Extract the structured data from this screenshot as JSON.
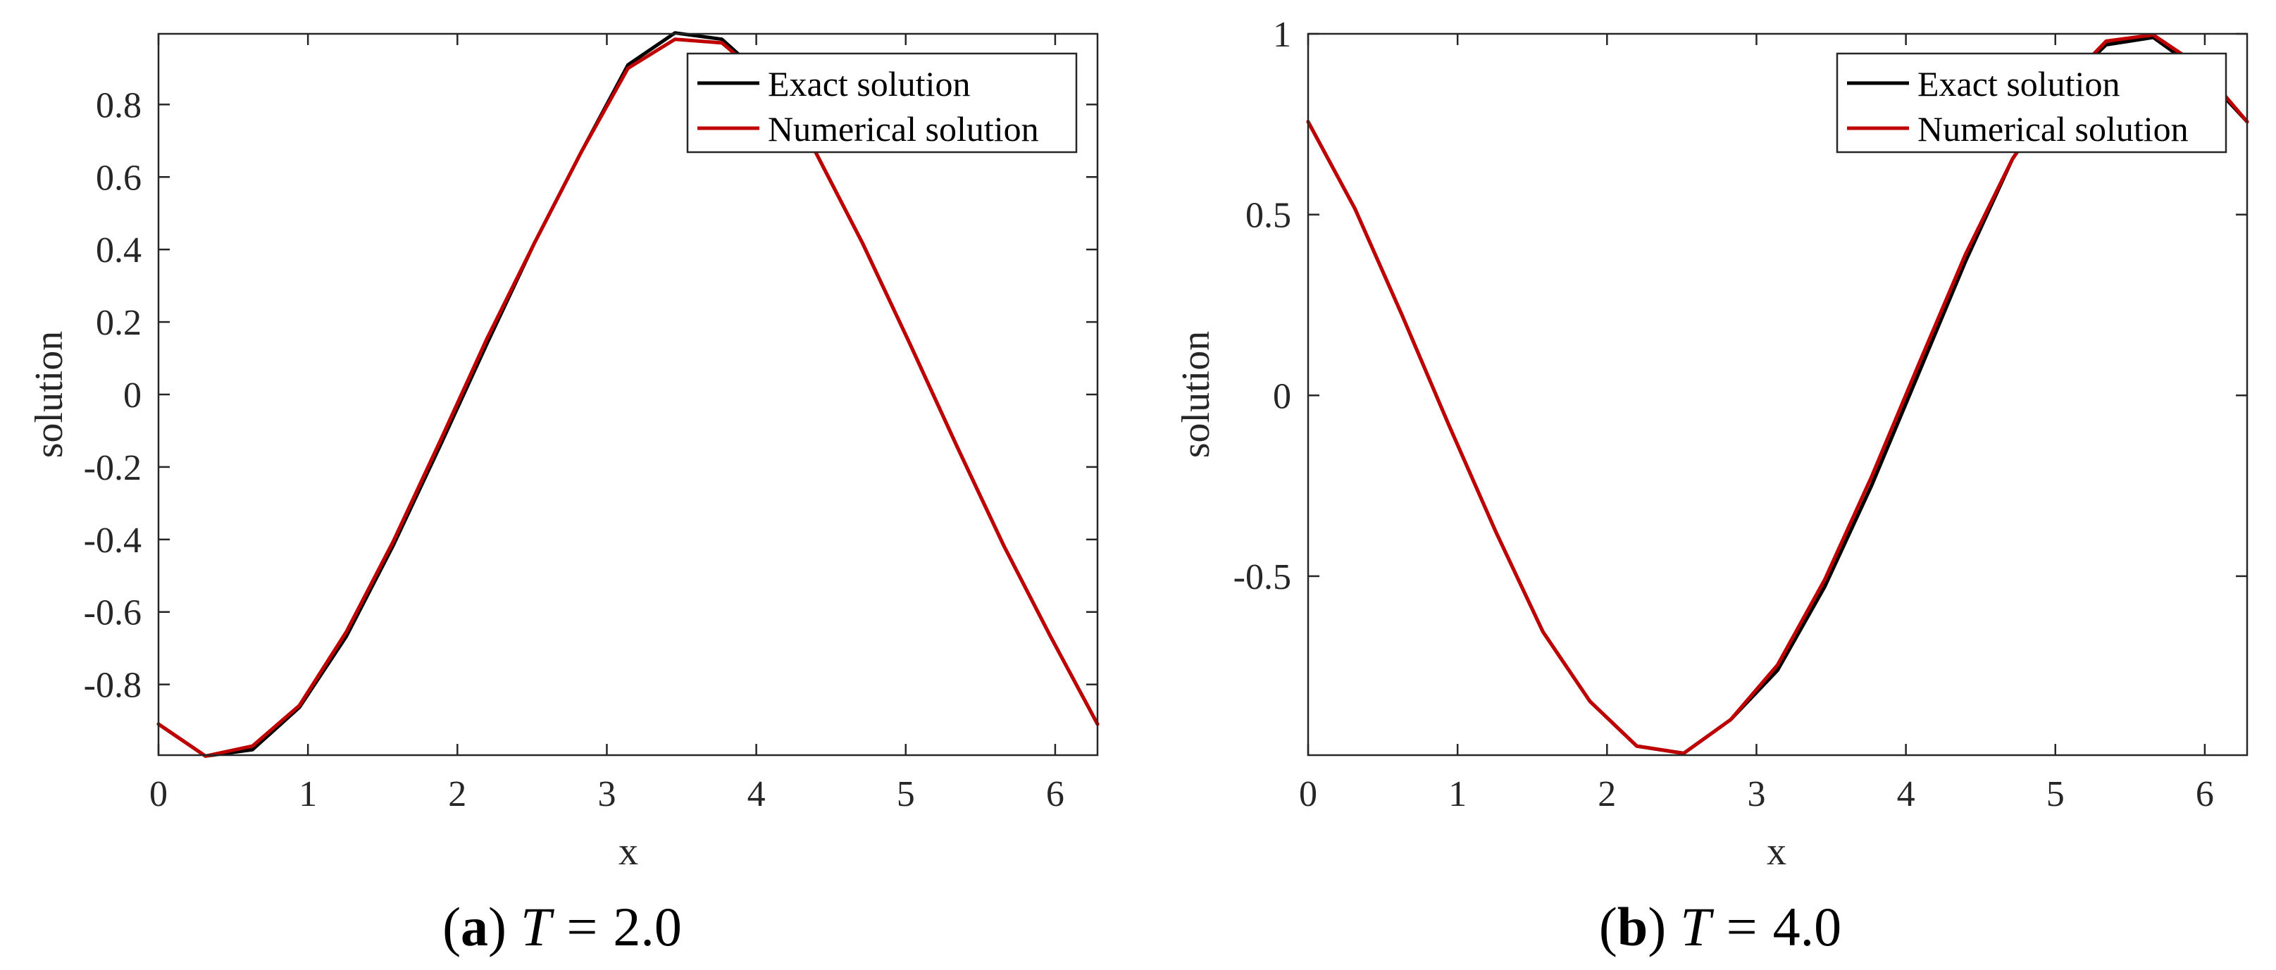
{
  "chart_data": [
    {
      "type": "line",
      "caption": {
        "letter": "a",
        "open": "(",
        "close": ")",
        "variable": "T",
        "equals": "=",
        "value": "2.0"
      },
      "xlabel": "x",
      "ylabel": "solution",
      "xlim": [
        0,
        6.2832
      ],
      "ylim": [
        -0.995,
        0.995
      ],
      "xticks": [
        0,
        1,
        2,
        3,
        4,
        5,
        6
      ],
      "xtick_labels": [
        "0",
        "1",
        "2",
        "3",
        "4",
        "5",
        "6"
      ],
      "yticks": [
        -0.8,
        -0.6,
        -0.4,
        -0.2,
        0,
        0.2,
        0.4,
        0.6,
        0.8
      ],
      "ytick_labels": [
        "-0.8",
        "-0.6",
        "-0.4",
        "-0.2",
        "0",
        "0.2",
        "0.4",
        "0.6",
        "0.8"
      ],
      "legend_position": "top-right",
      "series": [
        {
          "name": "Exact solution",
          "color": "#000000",
          "x": [
            0,
            0.3142,
            0.6283,
            0.9425,
            1.2566,
            1.5708,
            1.885,
            2.1991,
            2.5133,
            2.8274,
            3.1416,
            3.4558,
            3.7699,
            4.0841,
            4.3982,
            4.7124,
            5.0265,
            5.3407,
            5.6549,
            5.969,
            6.2832
          ],
          "y": [
            -0.9093,
            -0.9975,
            -0.98,
            -0.8632,
            -0.6676,
            -0.4161,
            -0.1411,
            0.1411,
            0.4161,
            0.6676,
            0.9093,
            0.9975,
            0.98,
            0.8632,
            0.6676,
            0.4161,
            0.1411,
            -0.1411,
            -0.4161,
            -0.6676,
            -0.9093
          ]
        },
        {
          "name": "Numerical solution",
          "color": "#c00000",
          "x": [
            0,
            0.3142,
            0.6283,
            0.9425,
            1.2566,
            1.5708,
            1.885,
            2.1991,
            2.5133,
            2.8274,
            3.1416,
            3.4558,
            3.7699,
            4.0841,
            4.3982,
            4.7124,
            5.0265,
            5.3407,
            5.6549,
            5.969,
            6.2832
          ],
          "y": [
            -0.9093,
            -0.9975,
            -0.97,
            -0.858,
            -0.655,
            -0.405,
            -0.128,
            0.155,
            0.4161,
            0.6676,
            0.9,
            0.98,
            0.97,
            0.86,
            0.6676,
            0.4161,
            0.1411,
            -0.1411,
            -0.4161,
            -0.6676,
            -0.9093
          ]
        }
      ]
    },
    {
      "type": "line",
      "caption": {
        "letter": "b",
        "open": "(",
        "close": ")",
        "variable": "T",
        "equals": "=",
        "value": "4.0"
      },
      "xlabel": "x",
      "ylabel": "solution",
      "xlim": [
        0,
        6.2832
      ],
      "ylim": [
        -0.995,
        1.0
      ],
      "xticks": [
        0,
        1,
        2,
        3,
        4,
        5,
        6
      ],
      "xtick_labels": [
        "0",
        "1",
        "2",
        "3",
        "4",
        "5",
        "6"
      ],
      "yticks": [
        -0.5,
        0,
        0.5,
        1
      ],
      "ytick_labels": [
        "-0.5",
        "0",
        "0.5",
        "1"
      ],
      "legend_position": "top-right",
      "series": [
        {
          "name": "Exact solution",
          "color": "#000000",
          "x": [
            0,
            0.3142,
            0.6283,
            0.9425,
            1.2566,
            1.5708,
            1.885,
            2.1991,
            2.5133,
            2.8274,
            3.1416,
            3.4558,
            3.7699,
            4.0841,
            4.3982,
            4.7124,
            5.0265,
            5.3407,
            5.6549,
            5.969,
            6.2832
          ],
          "y": [
            0.7568,
            0.5155,
            0.2221,
            -0.0831,
            -0.3778,
            -0.6536,
            -0.8457,
            -0.9698,
            -0.99,
            -0.8968,
            -0.76,
            -0.53,
            -0.25,
            0.06,
            0.37,
            0.6536,
            0.8457,
            0.9698,
            0.99,
            0.8968,
            0.7568
          ]
        },
        {
          "name": "Numerical solution",
          "color": "#c00000",
          "x": [
            0,
            0.3142,
            0.6283,
            0.9425,
            1.2566,
            1.5708,
            1.885,
            2.1991,
            2.5133,
            2.8274,
            3.1416,
            3.4558,
            3.7699,
            4.0841,
            4.3982,
            4.7124,
            5.0265,
            5.3407,
            5.6549,
            5.969,
            6.2832
          ],
          "y": [
            0.7568,
            0.5155,
            0.2221,
            -0.0831,
            -0.3778,
            -0.6536,
            -0.8457,
            -0.9698,
            -0.99,
            -0.8968,
            -0.745,
            -0.51,
            -0.225,
            0.085,
            0.39,
            0.6536,
            0.8457,
            0.98,
            0.997,
            0.91,
            0.7568
          ]
        }
      ]
    }
  ]
}
